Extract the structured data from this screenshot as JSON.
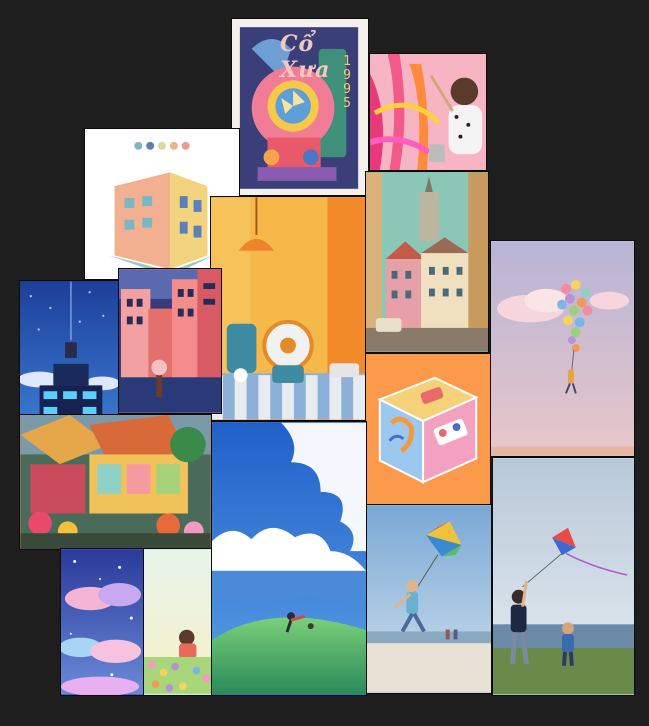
{
  "board": {
    "background": "#1e1e1e"
  },
  "tiles": [
    {
      "id": "retro-clock-poster",
      "icon": "vintage-clock-illustration",
      "title_text": "Cổ Xưa",
      "year_text": "1995"
    },
    {
      "id": "child-painting-photo",
      "icon": "child-painting-wall-photo"
    },
    {
      "id": "building-palette-illustration",
      "icon": "isometric-building-icon",
      "palette": [
        "#7ab7c4",
        "#5b7fb8",
        "#f0c8a0",
        "#f3b18a",
        "#ee9a8a"
      ]
    },
    {
      "id": "orange-fan-photo",
      "icon": "desk-fan-scene"
    },
    {
      "id": "european-street-photo",
      "icon": "old-town-street-photo"
    },
    {
      "id": "balloon-cloud-photo",
      "icon": "balloon-bunch-over-clouds"
    },
    {
      "id": "pixel-night-city",
      "icon": "pixel-art-city-night"
    },
    {
      "id": "pink-city-illustration",
      "icon": "pink-city-buildings"
    },
    {
      "id": "isometric-cube-illustration",
      "icon": "isometric-cube-icon"
    },
    {
      "id": "painted-cafe-illustration",
      "icon": "colorful-cafe-painting"
    },
    {
      "id": "sky-cloud-illustration",
      "icon": "anime-sky-hill-scene"
    },
    {
      "id": "kite-beach-photo",
      "icon": "boy-with-kite-photo"
    },
    {
      "id": "father-son-kite-photo",
      "icon": "family-flying-kite-photo"
    },
    {
      "id": "pastel-clouds-illustration",
      "icon": "pastel-clouds-stars"
    },
    {
      "id": "girl-flowers-illustration",
      "icon": "girl-in-flowers-scene"
    }
  ]
}
